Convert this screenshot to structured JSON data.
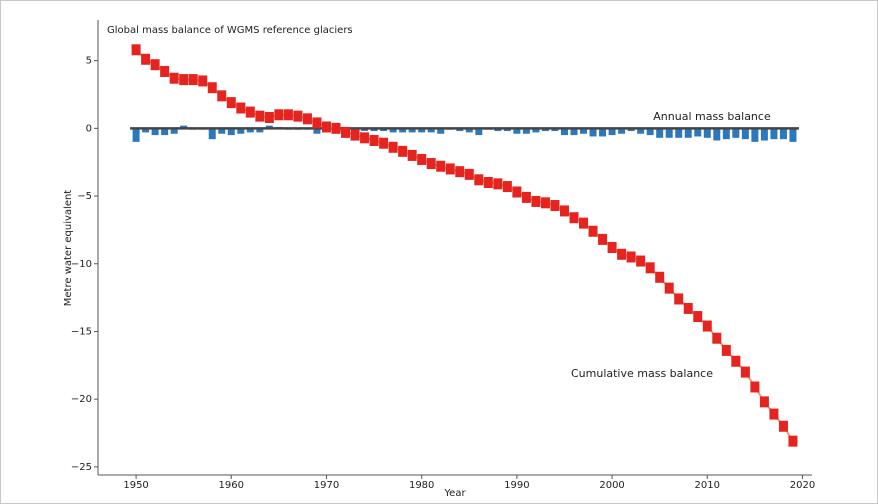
{
  "chart_data": {
    "type": "combo",
    "title": "Global mass balance of WGMS reference glaciers",
    "x_label": "Year",
    "y_label": "Metre water equivalent",
    "x": [
      1950,
      1951,
      1952,
      1953,
      1954,
      1955,
      1956,
      1957,
      1958,
      1959,
      1960,
      1961,
      1962,
      1963,
      1964,
      1965,
      1966,
      1967,
      1968,
      1969,
      1970,
      1971,
      1972,
      1973,
      1974,
      1975,
      1976,
      1977,
      1978,
      1979,
      1980,
      1981,
      1982,
      1983,
      1984,
      1985,
      1986,
      1987,
      1988,
      1989,
      1990,
      1991,
      1992,
      1993,
      1994,
      1995,
      1996,
      1997,
      1998,
      1999,
      2000,
      2001,
      2002,
      2003,
      2004,
      2005,
      2006,
      2007,
      2008,
      2009,
      2010,
      2011,
      2012,
      2013,
      2014,
      2015,
      2016,
      2017,
      2018,
      2019
    ],
    "xlim": [
      1946,
      2021
    ],
    "xticks": [
      1950,
      1960,
      1970,
      1980,
      1990,
      2000,
      2010,
      2020
    ],
    "ylim": [
      -25.6,
      8
    ],
    "yticks": [
      5,
      0,
      {
        "value": -5,
        "label": "−5"
      },
      {
        "value": -10,
        "label": "−10"
      },
      {
        "value": -15,
        "label": "−15"
      },
      {
        "value": -20,
        "label": "−20"
      },
      {
        "value": -25,
        "label": "−25"
      }
    ],
    "series": [
      {
        "name": "Annual mass balance",
        "type": "bar",
        "color": "#2d78bd",
        "values": [
          -1.0,
          -0.3,
          -0.5,
          -0.5,
          -0.4,
          0.2,
          -0.1,
          -0.1,
          -0.8,
          -0.4,
          -0.5,
          -0.4,
          -0.3,
          -0.3,
          0.2,
          0.1,
          -0.1,
          -0.1,
          -0.1,
          -0.4,
          -0.2,
          -0.1,
          -0.3,
          -0.2,
          -0.2,
          -0.2,
          -0.2,
          -0.3,
          -0.3,
          -0.3,
          -0.3,
          -0.3,
          -0.4,
          -0.1,
          -0.2,
          -0.3,
          -0.5,
          -0.1,
          -0.2,
          -0.2,
          -0.4,
          -0.4,
          -0.3,
          -0.2,
          -0.2,
          -0.5,
          -0.5,
          -0.4,
          -0.6,
          -0.6,
          -0.5,
          -0.4,
          -0.2,
          -0.4,
          -0.5,
          -0.7,
          -0.7,
          -0.7,
          -0.7,
          -0.6,
          -0.7,
          -0.9,
          -0.8,
          -0.7,
          -0.8,
          -1.0,
          -0.9,
          -0.8,
          -0.8,
          -1.0
        ]
      },
      {
        "name": "Cumulative mass balance",
        "type": "line",
        "color": "#e52420",
        "line_color": "#f39a6e",
        "values": [
          5.8,
          5.1,
          4.7,
          4.2,
          3.7,
          3.6,
          3.6,
          3.5,
          3.0,
          2.4,
          1.9,
          1.5,
          1.2,
          0.9,
          0.8,
          1.0,
          1.0,
          0.9,
          0.7,
          0.4,
          0.1,
          0.0,
          -0.3,
          -0.5,
          -0.7,
          -0.9,
          -1.1,
          -1.4,
          -1.7,
          -2.0,
          -2.3,
          -2.6,
          -2.8,
          -3.0,
          -3.2,
          -3.4,
          -3.8,
          -4.0,
          -4.1,
          -4.3,
          -4.7,
          -5.1,
          -5.4,
          -5.5,
          -5.7,
          -6.1,
          -6.6,
          -7.0,
          -7.6,
          -8.2,
          -8.8,
          -9.3,
          -9.5,
          -9.8,
          -10.3,
          -11.0,
          -11.8,
          -12.6,
          -13.3,
          -13.9,
          -14.6,
          -15.5,
          -16.4,
          -17.2,
          -18.0,
          -19.1,
          -20.2,
          -21.1,
          -22.0,
          -23.1
        ]
      }
    ],
    "grid": false
  }
}
